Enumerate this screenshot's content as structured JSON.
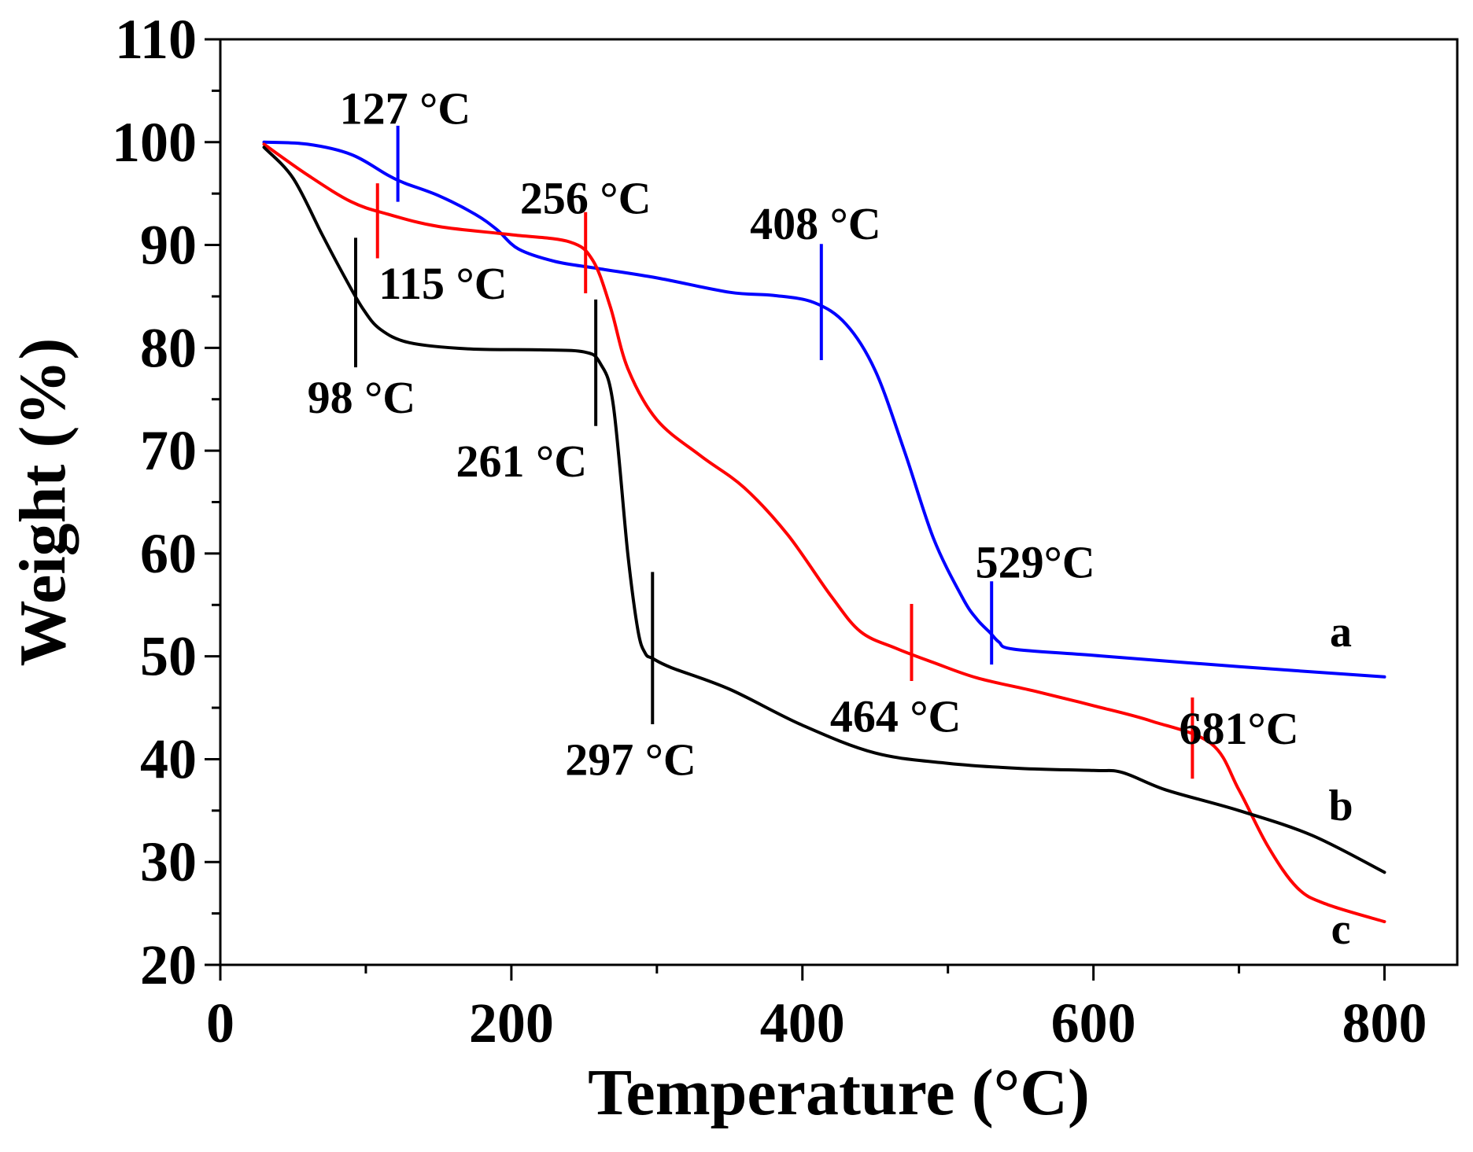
{
  "chart_data": {
    "type": "line",
    "title": "",
    "xlabel": "Temperature (°C)",
    "ylabel": "Weight (%)",
    "xlim": [
      0,
      850
    ],
    "ylim": [
      20,
      110
    ],
    "x_ticks": [
      0,
      200,
      400,
      600,
      800
    ],
    "x_tick_labels": [
      "0",
      "200",
      "400",
      "600",
      "800"
    ],
    "y_ticks": [
      20,
      30,
      40,
      50,
      60,
      70,
      80,
      90,
      100,
      110
    ],
    "y_tick_labels": [
      "20",
      "30",
      "40",
      "50",
      "60",
      "70",
      "80",
      "90",
      "100",
      "110"
    ],
    "grid": false,
    "series": [
      {
        "name": "a",
        "color": "#0000ff",
        "x": [
          30,
          60,
          90,
          115,
          127,
          150,
          175,
          190,
          205,
          230,
          260,
          300,
          350,
          380,
          408,
          430,
          450,
          470,
          490,
          510,
          520,
          529,
          535,
          545,
          600,
          700,
          800
        ],
        "y": [
          100,
          99.8,
          98.8,
          96.8,
          96.0,
          94.8,
          93.0,
          91.5,
          89.6,
          88.4,
          87.7,
          86.8,
          85.4,
          85.1,
          84.4,
          82.3,
          77.8,
          70.0,
          61.5,
          55.7,
          53.6,
          52.3,
          51.4,
          50.7,
          50.1,
          49.0,
          48.0
        ]
      },
      {
        "name": "c",
        "color": "#ff0000",
        "x": [
          30,
          60,
          90,
          115,
          150,
          200,
          240,
          256,
          268,
          280,
          300,
          330,
          360,
          390,
          420,
          440,
          464,
          490,
          520,
          560,
          600,
          640,
          681,
          700,
          720,
          740,
          760,
          800
        ],
        "y": [
          99.8,
          96.8,
          94.2,
          93.0,
          91.8,
          91.0,
          90.3,
          88.5,
          84.0,
          78.0,
          73.0,
          69.5,
          66.4,
          61.8,
          55.8,
          52.4,
          50.8,
          49.4,
          47.9,
          46.6,
          45.2,
          43.7,
          41.5,
          37.0,
          31.5,
          27.5,
          25.9,
          24.2
        ]
      },
      {
        "name": "b",
        "color": "#000000",
        "x": [
          30,
          50,
          70,
          85,
          98,
          110,
          130,
          170,
          220,
          250,
          261,
          270,
          280,
          287,
          292,
          297,
          310,
          350,
          400,
          450,
          500,
          550,
          600,
          620,
          650,
          700,
          750,
          800
        ],
        "y": [
          99.5,
          96.5,
          91.0,
          87.0,
          83.8,
          81.8,
          80.5,
          79.9,
          79.8,
          79.6,
          78.5,
          74.5,
          60.0,
          52.5,
          50.3,
          49.8,
          48.9,
          46.8,
          43.3,
          40.6,
          39.6,
          39.1,
          38.9,
          38.7,
          37.0,
          35.0,
          32.6,
          29.0
        ]
      }
    ],
    "series_labels": [
      {
        "text": "a",
        "x": 770,
        "y": 52.5
      },
      {
        "text": "b",
        "x": 770,
        "y": 35.6
      },
      {
        "text": "c",
        "x": 770,
        "y": 23.6
      }
    ],
    "annotations": [
      {
        "text": "127 °C",
        "color": "#0000ff",
        "x": 122,
        "y1": 94.2,
        "y2": 101.6,
        "label_x": 127,
        "label_y": 103.3
      },
      {
        "text": "115 °C",
        "color": "#ff0000",
        "x": 108,
        "y1": 88.7,
        "y2": 96.0,
        "label_x": 153,
        "label_y": 86.3
      },
      {
        "text": "98 °C",
        "color": "#000000",
        "x": 93,
        "y1": 78.1,
        "y2": 90.7,
        "label_x": 97,
        "label_y": 75.2
      },
      {
        "text": "256 °C",
        "color": "#ff0000",
        "x": 251,
        "y1": 85.3,
        "y2": 93.2,
        "label_x": 251,
        "label_y": 94.6
      },
      {
        "text": "261 °C",
        "color": "#000000",
        "x": 258,
        "y1": 72.4,
        "y2": 84.7,
        "label_x": 207,
        "label_y": 69.0
      },
      {
        "text": "408 °C",
        "color": "#0000ff",
        "x": 413,
        "y1": 78.8,
        "y2": 90.1,
        "label_x": 409,
        "label_y": 92.1
      },
      {
        "text": "297 °C",
        "color": "#000000",
        "x": 297,
        "y1": 43.4,
        "y2": 58.2,
        "label_x": 282,
        "label_y": 40.0
      },
      {
        "text": "529°C",
        "color": "#0000ff",
        "x": 530,
        "y1": 49.2,
        "y2": 57.3,
        "label_x": 560,
        "label_y": 59.2
      },
      {
        "text": "464 °C",
        "color": "#ff0000",
        "x": 475,
        "y1": 47.6,
        "y2": 55.1,
        "label_x": 464,
        "label_y": 44.2
      },
      {
        "text": "681°C",
        "color": "#ff0000",
        "x": 668,
        "y1": 38.1,
        "y2": 46.0,
        "label_x": 700,
        "label_y": 43.0
      }
    ]
  }
}
